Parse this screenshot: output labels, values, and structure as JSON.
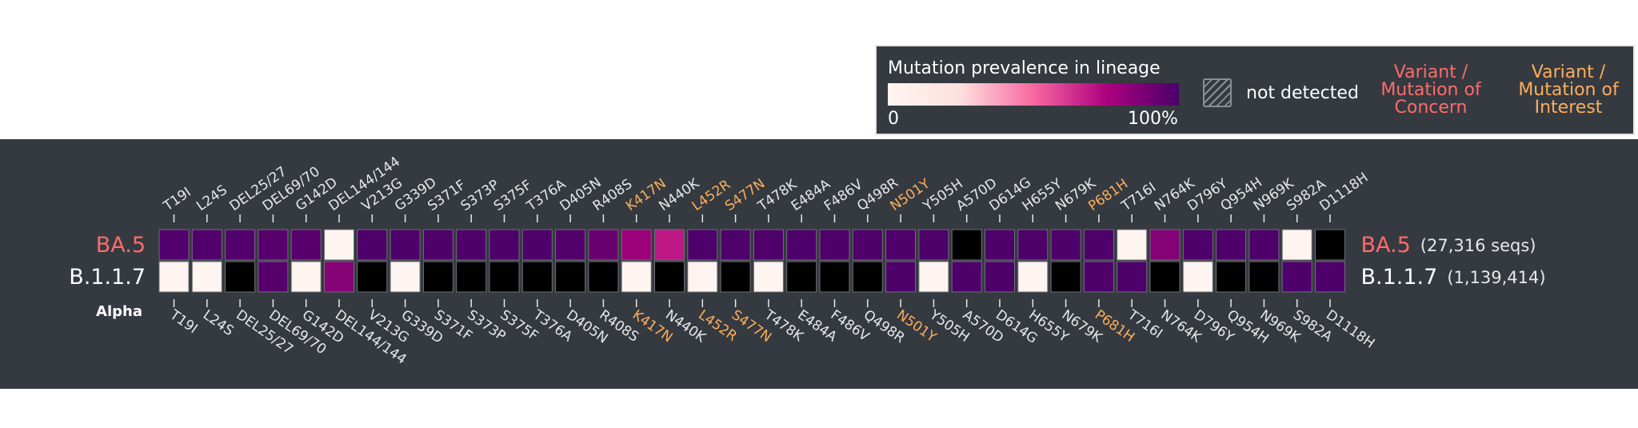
{
  "legend": {
    "title": "Mutation prevalence in lineage",
    "scale_min": "0",
    "scale_max": "100%",
    "not_detected": "not detected",
    "concern_label": [
      "Variant /",
      "Mutation of",
      "Concern"
    ],
    "interest_label": [
      "Variant /",
      "Mutation of",
      "Interest"
    ]
  },
  "colors": {
    "panel": "#343a40",
    "label": "#e8e8e8",
    "concern": "#ff6b6b",
    "interest": "#ffad5a",
    "cell_border": "#6f6f78"
  },
  "chart_data": {
    "type": "heatmap",
    "title": "Mutation prevalence in lineage",
    "value_range": [
      0,
      1
    ],
    "mutations": [
      {
        "name": "T19I",
        "type": "normal"
      },
      {
        "name": "L24S",
        "type": "normal"
      },
      {
        "name": "DEL25/27",
        "type": "normal"
      },
      {
        "name": "DEL69/70",
        "type": "normal"
      },
      {
        "name": "G142D",
        "type": "normal"
      },
      {
        "name": "DEL144/144",
        "type": "normal"
      },
      {
        "name": "V213G",
        "type": "normal"
      },
      {
        "name": "G339D",
        "type": "normal"
      },
      {
        "name": "S371F",
        "type": "normal"
      },
      {
        "name": "S373P",
        "type": "normal"
      },
      {
        "name": "S375F",
        "type": "normal"
      },
      {
        "name": "T376A",
        "type": "normal"
      },
      {
        "name": "D405N",
        "type": "normal"
      },
      {
        "name": "R408S",
        "type": "normal"
      },
      {
        "name": "K417N",
        "type": "interest"
      },
      {
        "name": "N440K",
        "type": "normal"
      },
      {
        "name": "L452R",
        "type": "interest"
      },
      {
        "name": "S477N",
        "type": "interest"
      },
      {
        "name": "T478K",
        "type": "normal"
      },
      {
        "name": "E484A",
        "type": "normal"
      },
      {
        "name": "F486V",
        "type": "normal"
      },
      {
        "name": "Q498R",
        "type": "normal"
      },
      {
        "name": "N501Y",
        "type": "interest"
      },
      {
        "name": "Y505H",
        "type": "normal"
      },
      {
        "name": "A570D",
        "type": "normal"
      },
      {
        "name": "D614G",
        "type": "normal"
      },
      {
        "name": "H655Y",
        "type": "normal"
      },
      {
        "name": "N679K",
        "type": "normal"
      },
      {
        "name": "P681H",
        "type": "interest"
      },
      {
        "name": "T716I",
        "type": "normal"
      },
      {
        "name": "N764K",
        "type": "normal"
      },
      {
        "name": "D796Y",
        "type": "normal"
      },
      {
        "name": "Q954H",
        "type": "normal"
      },
      {
        "name": "N969K",
        "type": "normal"
      },
      {
        "name": "S982A",
        "type": "normal"
      },
      {
        "name": "D1118H",
        "type": "normal"
      }
    ],
    "lineages": [
      {
        "name": "BA.5",
        "subtitle": "",
        "count": "(27,316 seqs)",
        "name_color": "#ff6b6b",
        "values": [
          0.98,
          0.98,
          0.98,
          0.97,
          0.97,
          0.0,
          0.99,
          0.99,
          0.99,
          0.99,
          0.99,
          0.99,
          0.98,
          0.93,
          0.82,
          0.73,
          0.99,
          0.99,
          0.99,
          0.99,
          0.99,
          0.99,
          0.99,
          0.99,
          null,
          0.99,
          0.99,
          0.99,
          0.99,
          0.0,
          0.87,
          0.99,
          0.99,
          0.99,
          0.0,
          null
        ]
      },
      {
        "name": "B.1.1.7",
        "subtitle": "Alpha",
        "count": "(1,139,414)",
        "name_color": "#ffffff",
        "values": [
          0.0,
          0.0,
          null,
          0.97,
          0.0,
          0.87,
          null,
          0.0,
          null,
          null,
          null,
          null,
          null,
          null,
          0.0,
          null,
          0.0,
          null,
          0.0,
          null,
          null,
          null,
          0.99,
          0.0,
          0.99,
          0.99,
          0.0,
          null,
          0.99,
          0.99,
          null,
          0.0,
          null,
          null,
          0.99,
          0.99
        ]
      }
    ]
  }
}
